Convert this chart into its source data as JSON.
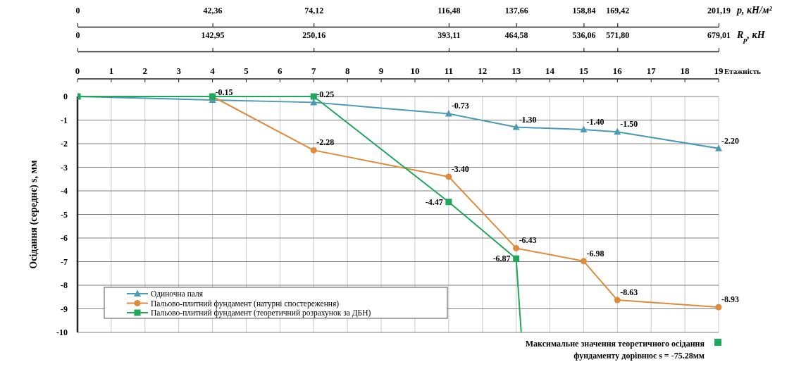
{
  "chart_data": [
    {
      "type": "line",
      "ylabel": "Осідання (середнє) s, мм",
      "xlabel": "Етажність",
      "x2label": "R$_{p}$, кН",
      "xlim": [
        0,
        19
      ],
      "xticks": [
        0,
        1,
        2,
        3,
        4,
        5,
        6,
        7,
        8,
        9,
        10,
        11,
        12,
        13,
        14,
        15,
        16,
        17,
        18,
        19
      ],
      "x2lim": [
        0,
        679.01
      ],
      "x2ticks": [
        {
          "value": 0,
          "label": "0"
        },
        {
          "value": 142.95,
          "label": "142,95"
        },
        {
          "value": 250.16,
          "label": "250,16"
        },
        {
          "value": 393.11,
          "label": "393,11"
        },
        {
          "value": 464.58,
          "label": "464,58"
        },
        {
          "value": 536.06,
          "label": "536,06"
        },
        {
          "value": 571.8,
          "label": "571,80"
        },
        {
          "value": 679.01,
          "label": "679,01"
        }
      ],
      "ylim": [
        -10,
        0
      ],
      "yticks": [
        0,
        -1,
        -2,
        -3,
        -4,
        -5,
        -6,
        -7,
        -8,
        -9,
        -10
      ],
      "grid": true,
      "legend": "bottom left",
      "series": [
        {
          "name": "Одиночна паля",
          "color": "#4a9bb5",
          "marker": "triangle",
          "x": [
            0,
            4,
            7,
            11,
            13,
            15,
            16,
            19
          ],
          "values": [
            0,
            -0.15,
            -0.25,
            -0.73,
            -1.3,
            -1.4,
            -1.5,
            -2.2
          ],
          "value_labels": [
            null,
            "-0.15",
            "-0.25",
            "-0.73",
            "-1.30",
            "-1.40",
            "-1.50",
            "-2.20"
          ]
        },
        {
          "name": "Пальово-плитний фундамент (натурні спостереження)",
          "color": "#e08a3c",
          "marker": "circle",
          "x": [
            0,
            4,
            7,
            11,
            13,
            15,
            16,
            19
          ],
          "values": [
            0,
            0,
            -2.28,
            -3.4,
            -6.43,
            -6.98,
            -8.63,
            -8.93
          ],
          "value_labels": [
            null,
            null,
            "-2.28",
            "-3.40",
            "-6.43",
            "-6.98",
            "-8.63",
            "-8.93"
          ]
        },
        {
          "name": "Пальово-плитний фундамент (теоретичний розрахунок за ДБН)",
          "color": "#1fa85a",
          "marker": "square",
          "x": [
            0,
            4,
            7,
            11,
            13,
            13.15
          ],
          "values": [
            0,
            0,
            0,
            -4.47,
            -6.87,
            -10
          ],
          "value_labels": [
            null,
            null,
            null,
            "-4.47",
            "-6.87",
            null
          ]
        }
      ],
      "annotations": [
        "Максимальне значення теоретичного осідання\nфундаменту дорівнює s = -75.28мм"
      ]
    },
    {
      "type": "other",
      "xlabel": "p, кН/м²",
      "annotations": [
        "0",
        "42,36",
        "74,12",
        "116,48",
        "137,66",
        "158,84",
        "169,42",
        "201,19"
      ]
    }
  ]
}
